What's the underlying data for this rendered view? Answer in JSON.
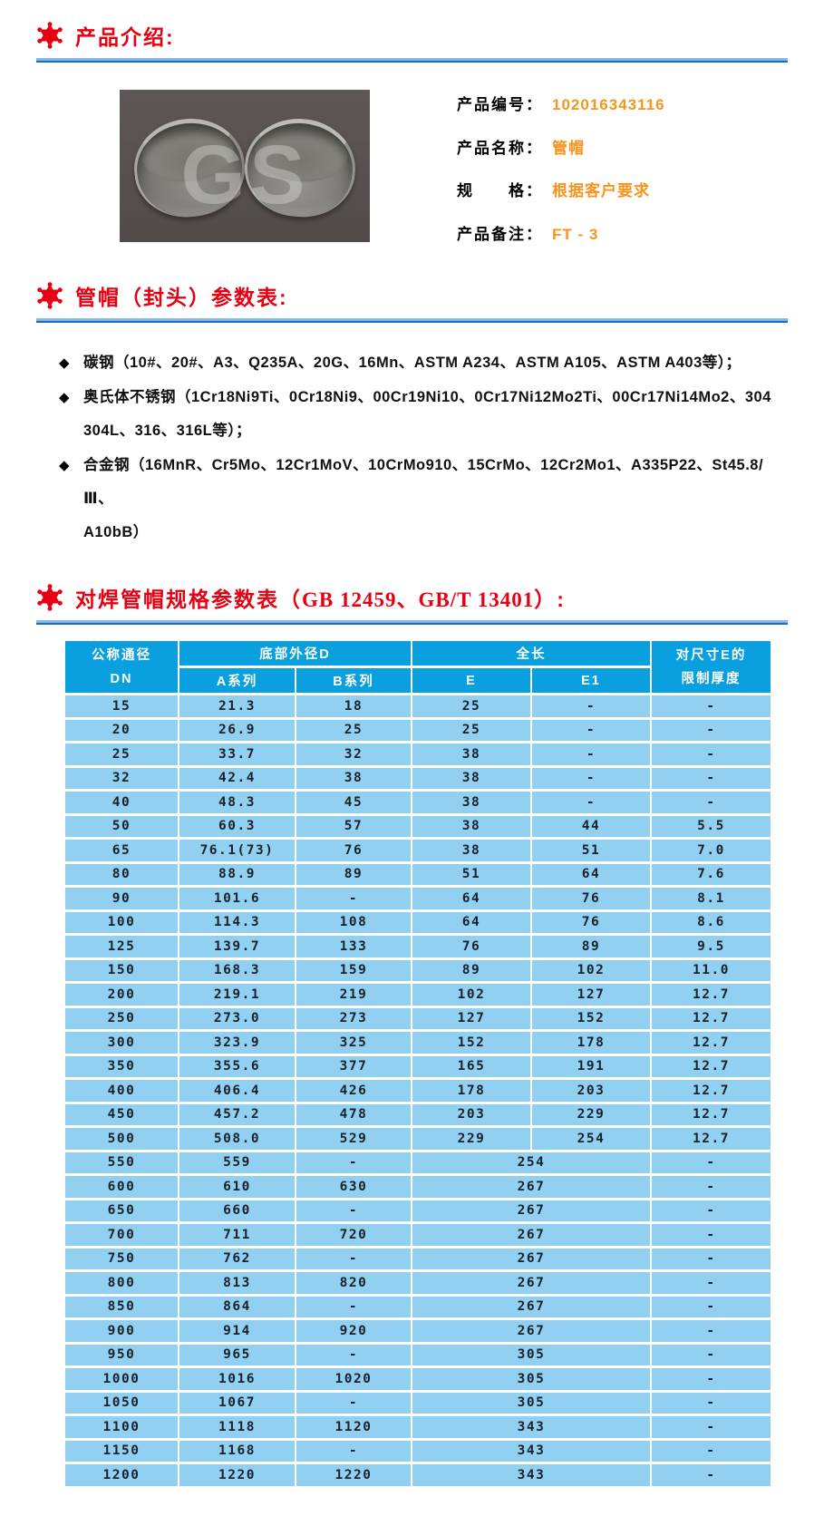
{
  "colors": {
    "accent_red": "#e60012",
    "accent_orange": "#f7941d",
    "table_header_blue": "#0aa0e0",
    "table_row_blue": "#92d0f2",
    "rule_blue_dark": "#1b6fc0",
    "rule_blue_light": "#85b9e6",
    "photo_background": "#575050"
  },
  "sections": {
    "intro_title": "产品介绍:",
    "params_title": "管帽（封头）参数表:",
    "spec_title_prefix": "对焊管帽规格参数表（",
    "spec_title_standard": "GB 12459、GB/T 13401",
    "spec_title_suffix": "）:"
  },
  "product": {
    "watermark": "GS",
    "fields": [
      {
        "label": "产品编号：",
        "value": "102016343116"
      },
      {
        "label": "产品名称：",
        "value": "管帽"
      },
      {
        "label": "规　　格：",
        "value": "根据客户要求"
      },
      {
        "label": "产品备注：",
        "value": "FT - 3"
      }
    ]
  },
  "bullet_char": "◆",
  "materials": [
    {
      "lines": [
        "碳钢（10#、20#、A3、Q235A、20G、16Mn、ASTM A234、ASTM A105、ASTM A403等）；"
      ]
    },
    {
      "lines": [
        "奥氏体不锈钢（1Cr18Ni9Ti、0Cr18Ni9、00Cr19Ni10、0Cr17Ni12Mo2Ti、00Cr17Ni14Mo2、304",
        "304L、316、316L等）；"
      ]
    },
    {
      "lines": [
        "合金钢（16MnR、Cr5Mo、12Cr1MoV、10CrMo910、15CrMo、12Cr2Mo1、A335P22、St45.8/Ⅲ、",
        "A10bB）"
      ]
    }
  ],
  "table": {
    "headers": {
      "col_dn": [
        "公称通径",
        "DN"
      ],
      "group_d": "底部外径D",
      "col_a": "A系列",
      "col_b": "B系列",
      "group_len": "全长",
      "col_e": "E",
      "col_e1": "E1",
      "col_thickness": [
        "对尺寸E的",
        "限制厚度"
      ]
    },
    "rows": [
      {
        "dn": "15",
        "a": "21.3",
        "b": "18",
        "e": "25",
        "e1": "-",
        "t": "-"
      },
      {
        "dn": "20",
        "a": "26.9",
        "b": "25",
        "e": "25",
        "e1": "-",
        "t": "-"
      },
      {
        "dn": "25",
        "a": "33.7",
        "b": "32",
        "e": "38",
        "e1": "-",
        "t": "-"
      },
      {
        "dn": "32",
        "a": "42.4",
        "b": "38",
        "e": "38",
        "e1": "-",
        "t": "-"
      },
      {
        "dn": "40",
        "a": "48.3",
        "b": "45",
        "e": "38",
        "e1": "-",
        "t": "-"
      },
      {
        "dn": "50",
        "a": "60.3",
        "b": "57",
        "e": "38",
        "e1": "44",
        "t": "5.5"
      },
      {
        "dn": "65",
        "a": "76.1(73)",
        "b": "76",
        "e": "38",
        "e1": "51",
        "t": "7.0"
      },
      {
        "dn": "80",
        "a": "88.9",
        "b": "89",
        "e": "51",
        "e1": "64",
        "t": "7.6"
      },
      {
        "dn": "90",
        "a": "101.6",
        "b": "-",
        "e": "64",
        "e1": "76",
        "t": "8.1"
      },
      {
        "dn": "100",
        "a": "114.3",
        "b": "108",
        "e": "64",
        "e1": "76",
        "t": "8.6"
      },
      {
        "dn": "125",
        "a": "139.7",
        "b": "133",
        "e": "76",
        "e1": "89",
        "t": "9.5"
      },
      {
        "dn": "150",
        "a": "168.3",
        "b": "159",
        "e": "89",
        "e1": "102",
        "t": "11.0"
      },
      {
        "dn": "200",
        "a": "219.1",
        "b": "219",
        "e": "102",
        "e1": "127",
        "t": "12.7"
      },
      {
        "dn": "250",
        "a": "273.0",
        "b": "273",
        "e": "127",
        "e1": "152",
        "t": "12.7"
      },
      {
        "dn": "300",
        "a": "323.9",
        "b": "325",
        "e": "152",
        "e1": "178",
        "t": "12.7"
      },
      {
        "dn": "350",
        "a": "355.6",
        "b": "377",
        "e": "165",
        "e1": "191",
        "t": "12.7"
      },
      {
        "dn": "400",
        "a": "406.4",
        "b": "426",
        "e": "178",
        "e1": "203",
        "t": "12.7"
      },
      {
        "dn": "450",
        "a": "457.2",
        "b": "478",
        "e": "203",
        "e1": "229",
        "t": "12.7"
      },
      {
        "dn": "500",
        "a": "508.0",
        "b": "529",
        "e": "229",
        "e1": "254",
        "t": "12.7"
      },
      {
        "dn": "550",
        "a": "559",
        "b": "-",
        "e": "254",
        "e1": null,
        "t": "-"
      },
      {
        "dn": "600",
        "a": "610",
        "b": "630",
        "e": "267",
        "e1": null,
        "t": "-"
      },
      {
        "dn": "650",
        "a": "660",
        "b": "-",
        "e": "267",
        "e1": null,
        "t": "-"
      },
      {
        "dn": "700",
        "a": "711",
        "b": "720",
        "e": "267",
        "e1": null,
        "t": "-"
      },
      {
        "dn": "750",
        "a": "762",
        "b": "-",
        "e": "267",
        "e1": null,
        "t": "-"
      },
      {
        "dn": "800",
        "a": "813",
        "b": "820",
        "e": "267",
        "e1": null,
        "t": "-"
      },
      {
        "dn": "850",
        "a": "864",
        "b": "-",
        "e": "267",
        "e1": null,
        "t": "-"
      },
      {
        "dn": "900",
        "a": "914",
        "b": "920",
        "e": "267",
        "e1": null,
        "t": "-"
      },
      {
        "dn": "950",
        "a": "965",
        "b": "-",
        "e": "305",
        "e1": null,
        "t": "-"
      },
      {
        "dn": "1000",
        "a": "1016",
        "b": "1020",
        "e": "305",
        "e1": null,
        "t": "-"
      },
      {
        "dn": "1050",
        "a": "1067",
        "b": "-",
        "e": "305",
        "e1": null,
        "t": "-"
      },
      {
        "dn": "1100",
        "a": "1118",
        "b": "1120",
        "e": "343",
        "e1": null,
        "t": "-"
      },
      {
        "dn": "1150",
        "a": "1168",
        "b": "-",
        "e": "343",
        "e1": null,
        "t": "-"
      },
      {
        "dn": "1200",
        "a": "1220",
        "b": "1220",
        "e": "343",
        "e1": null,
        "t": "-"
      }
    ]
  }
}
